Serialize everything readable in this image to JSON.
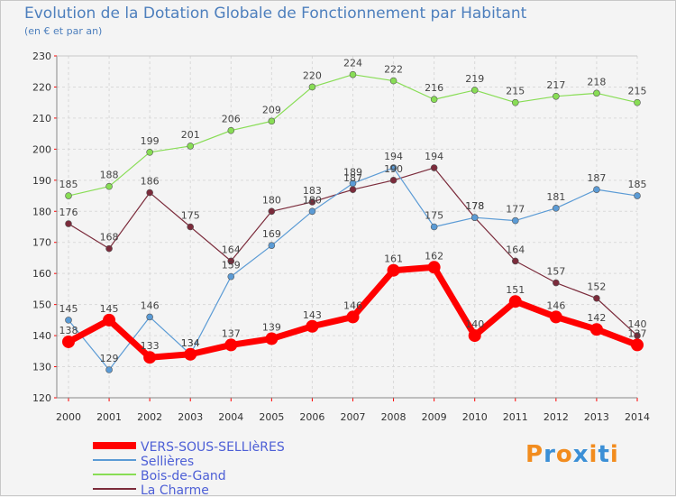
{
  "chart_data": {
    "type": "line",
    "title": "Evolution de la Dotation Globale de Fonctionnement par Habitant",
    "subtitle": "(en € et par an)",
    "x": [
      "2000",
      "2001",
      "2002",
      "2003",
      "2004",
      "2005",
      "2006",
      "2007",
      "2008",
      "2009",
      "2010",
      "2011",
      "2012",
      "2013",
      "2014"
    ],
    "ylim": [
      120,
      230
    ],
    "yticks": [
      120,
      130,
      140,
      150,
      160,
      170,
      180,
      190,
      200,
      210,
      220,
      230
    ],
    "grid": true,
    "legend_position": "bottom-left",
    "series": [
      {
        "name": "VERS-SOUS-SELLIèRES",
        "color": "#ff0000",
        "values": [
          138,
          145,
          133,
          134,
          137,
          139,
          143,
          146,
          161,
          162,
          140,
          151,
          146,
          142,
          137
        ]
      },
      {
        "name": "Sellières",
        "color": "#5b9bd5",
        "values": [
          145,
          129,
          146,
          134,
          159,
          169,
          180,
          189,
          194,
          175,
          178,
          177,
          181,
          187,
          185
        ]
      },
      {
        "name": "Bois-de-Gand",
        "color": "#88dd55",
        "values": [
          185,
          188,
          199,
          201,
          206,
          209,
          220,
          224,
          222,
          216,
          219,
          215,
          217,
          218,
          215
        ]
      },
      {
        "name": "La Charme",
        "color": "#7b2b3b",
        "values": [
          176,
          168,
          186,
          175,
          164,
          180,
          183,
          187,
          190,
          194,
          178,
          164,
          157,
          152,
          140
        ]
      }
    ]
  },
  "logo": {
    "text": "Proxiti",
    "colors": [
      "#f28c1e",
      "#3b8fd6",
      "#f28c1e",
      "#3b8fd6",
      "#f28c1e",
      "#3b8fd6",
      "#f28c1e"
    ]
  }
}
